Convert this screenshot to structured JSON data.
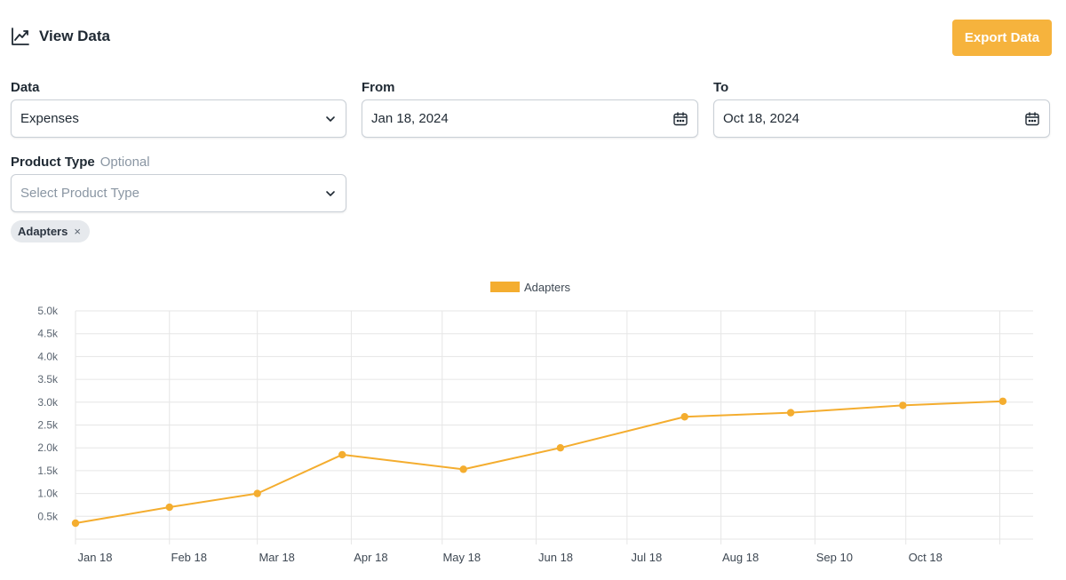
{
  "header": {
    "title": "View Data",
    "title_icon": "trend-line-icon",
    "export_label": "Export Data"
  },
  "filters": {
    "data": {
      "label": "Data",
      "value": "Expenses"
    },
    "from": {
      "label": "From",
      "value": "Jan 18, 2024"
    },
    "to": {
      "label": "To",
      "value": "Oct 18, 2024"
    },
    "product_type": {
      "label": "Product Type",
      "optional_label": "Optional",
      "placeholder": "Select Product Type"
    },
    "chips": [
      {
        "label": "Adapters",
        "remove": "×"
      }
    ]
  },
  "colors": {
    "accent": "#f6b33d",
    "series": "#f4ad2f",
    "grid": "#e6e6e6"
  },
  "chart_data": {
    "type": "line",
    "legend": {
      "position": "top-center",
      "entries": [
        "Adapters"
      ]
    },
    "grid": true,
    "ylim": [
      0,
      5000
    ],
    "y_ticks": [
      {
        "value": 500,
        "label": "0.5k"
      },
      {
        "value": 1000,
        "label": "1.0k"
      },
      {
        "value": 1500,
        "label": "1.5k"
      },
      {
        "value": 2000,
        "label": "2.0k"
      },
      {
        "value": 2500,
        "label": "2.5k"
      },
      {
        "value": 3000,
        "label": "3.0k"
      },
      {
        "value": 3500,
        "label": "3.5k"
      },
      {
        "value": 4000,
        "label": "4.0k"
      },
      {
        "value": 4500,
        "label": "4.5k"
      },
      {
        "value": 5000,
        "label": "5.0k"
      }
    ],
    "x_ticks": [
      "Jan 18",
      "Feb 18",
      "Mar 18",
      "Apr 18",
      "May 18",
      "Jun 18",
      "Jul 18",
      "Aug 18",
      "Sep 10",
      "Oct 18"
    ],
    "series": [
      {
        "name": "Adapters",
        "points": [
          {
            "x": "2024-01-18",
            "y": 350
          },
          {
            "x": "2024-02-18",
            "y": 700
          },
          {
            "x": "2024-03-18",
            "y": 1000
          },
          {
            "x": "2024-04-15",
            "y": 1850
          },
          {
            "x": "2024-05-25",
            "y": 1530
          },
          {
            "x": "2024-06-26",
            "y": 2000
          },
          {
            "x": "2024-08-06",
            "y": 2680
          },
          {
            "x": "2024-09-10",
            "y": 2770
          },
          {
            "x": "2024-10-17",
            "y": 2930
          },
          {
            "x": "2024-11-19",
            "y": 3020
          }
        ]
      }
    ]
  }
}
